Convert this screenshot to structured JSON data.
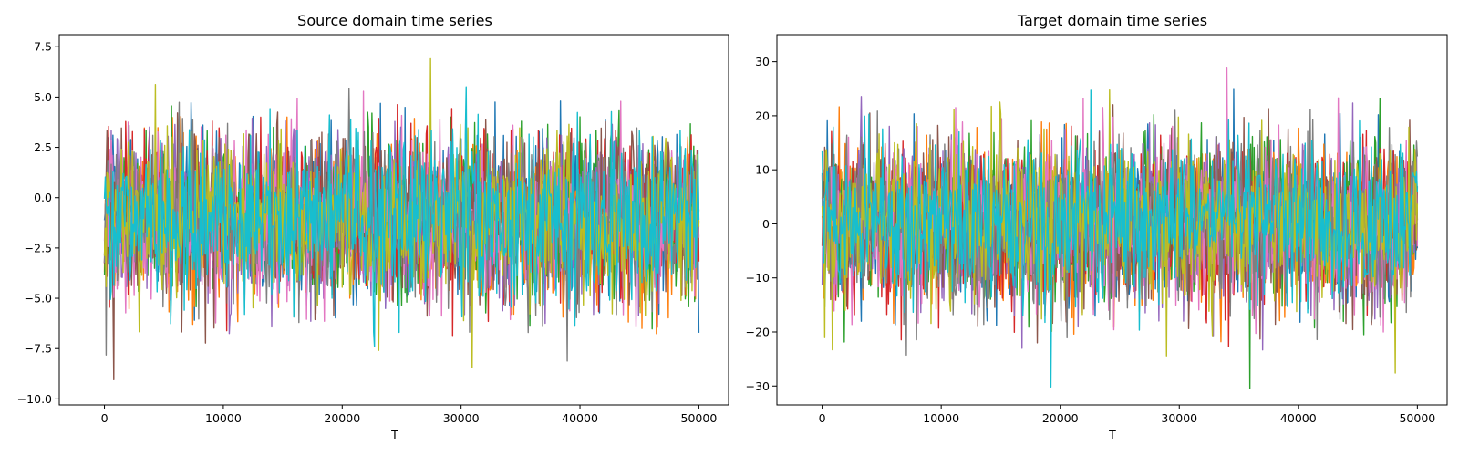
{
  "chart_data": [
    {
      "type": "line",
      "title": "Source domain time series",
      "xlabel": "T",
      "ylabel": "",
      "xlim": [
        -3800,
        52500
      ],
      "ylim": [
        -10.3,
        8.1
      ],
      "xticks": [
        0,
        10000,
        20000,
        30000,
        40000,
        50000
      ],
      "xtick_labels": [
        "0",
        "10000",
        "20000",
        "30000",
        "40000",
        "50000"
      ],
      "yticks": [
        -10.0,
        -7.5,
        -5.0,
        -2.5,
        0.0,
        2.5,
        5.0,
        7.5
      ],
      "ytick_labels": [
        "−10.0",
        "−7.5",
        "−5.0",
        "−2.5",
        "0.0",
        "2.5",
        "5.0",
        "7.5"
      ],
      "grid": false,
      "legend": "none",
      "x_range": [
        0,
        50000
      ],
      "n_series": 10,
      "series_mean": -1.0,
      "series_spread_typical": [
        -5.5,
        3.7
      ],
      "envelope_lower_min": -9.4,
      "envelope_upper_max": 7.3,
      "colors": [
        "#1f77b4",
        "#ff7f0e",
        "#2ca02c",
        "#d62728",
        "#9467bd",
        "#8c564b",
        "#e377c2",
        "#7f7f7f",
        "#bcbd22",
        "#17becf"
      ]
    },
    {
      "type": "line",
      "title": "Target domain time series",
      "xlabel": "T",
      "ylabel": "",
      "xlim": [
        -3800,
        52500
      ],
      "ylim": [
        -33.5,
        35.0
      ],
      "xticks": [
        0,
        10000,
        20000,
        30000,
        40000,
        50000
      ],
      "xtick_labels": [
        "0",
        "10000",
        "20000",
        "30000",
        "40000",
        "50000"
      ],
      "yticks": [
        -30,
        -20,
        -10,
        0,
        10,
        20,
        30
      ],
      "ytick_labels": [
        "−30",
        "−20",
        "−10",
        "0",
        "10",
        "20",
        "30"
      ],
      "grid": false,
      "legend": "none",
      "x_range": [
        0,
        50000
      ],
      "n_series": 10,
      "series_mean": 0.0,
      "series_spread_typical": [
        -17.0,
        17.0
      ],
      "envelope_lower_min": -30.5,
      "envelope_upper_max": 31.5,
      "colors": [
        "#1f77b4",
        "#ff7f0e",
        "#2ca02c",
        "#d62728",
        "#9467bd",
        "#8c564b",
        "#e377c2",
        "#7f7f7f",
        "#bcbd22",
        "#17becf"
      ]
    }
  ]
}
